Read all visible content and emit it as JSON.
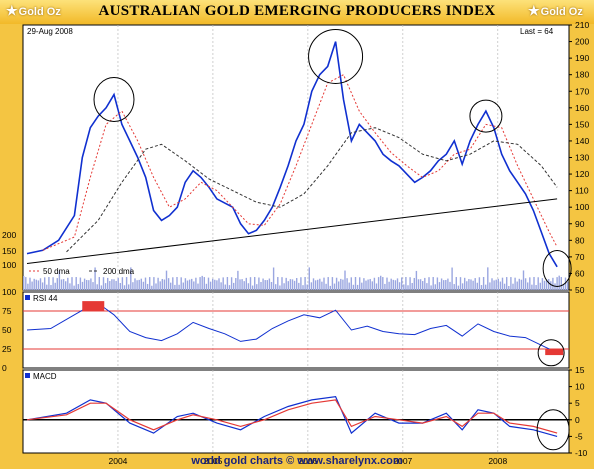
{
  "header": {
    "title": "AUSTRALIAN GOLD EMERGING PRODUCERS INDEX",
    "logo_left": "Gold Oz",
    "logo_right": "Gold Oz"
  },
  "footer": {
    "text": "world gold charts © www.sharelynx.com"
  },
  "chart_data": [
    {
      "type": "line",
      "panel": "price",
      "date_label": "29-Aug 2008",
      "last_label": "Last = 64",
      "ylim": [
        50,
        210
      ],
      "yticks": [
        50,
        60,
        70,
        80,
        90,
        100,
        110,
        120,
        130,
        140,
        150,
        160,
        170,
        180,
        190,
        200,
        210
      ],
      "volume_ticks": [
        "100",
        "150",
        "200"
      ],
      "x_labels": [
        "2004",
        "2005",
        "2006",
        "2007",
        "2008"
      ],
      "legend": [
        {
          "label": "50 dma",
          "color": "#e53935",
          "dash": "2,2"
        },
        {
          "label": "200 dma",
          "color": "#333333",
          "dash": "3,2"
        }
      ],
      "series": [
        {
          "name": "index",
          "color": "#1030d0",
          "points": [
            [
              "2003-01",
              72
            ],
            [
              "2003-03",
              74
            ],
            [
              "2003-05",
              80
            ],
            [
              "2003-07",
              95
            ],
            [
              "2003-08",
              130
            ],
            [
              "2003-09",
              148
            ],
            [
              "2003-10",
              155
            ],
            [
              "2003-11",
              160
            ],
            [
              "2003-12",
              168
            ],
            [
              "2004-01",
              150
            ],
            [
              "2004-02",
              140
            ],
            [
              "2004-03",
              130
            ],
            [
              "2004-04",
              118
            ],
            [
              "2004-05",
              98
            ],
            [
              "2004-06",
              92
            ],
            [
              "2004-07",
              95
            ],
            [
              "2004-08",
              100
            ],
            [
              "2004-09",
              115
            ],
            [
              "2004-10",
              122
            ],
            [
              "2004-11",
              118
            ],
            [
              "2004-12",
              112
            ],
            [
              "2005-01",
              105
            ],
            [
              "2005-03",
              100
            ],
            [
              "2005-04",
              90
            ],
            [
              "2005-05",
              84
            ],
            [
              "2005-06",
              86
            ],
            [
              "2005-07",
              92
            ],
            [
              "2005-08",
              100
            ],
            [
              "2005-09",
              112
            ],
            [
              "2005-10",
              125
            ],
            [
              "2005-11",
              140
            ],
            [
              "2005-12",
              150
            ],
            [
              "2006-01",
              170
            ],
            [
              "2006-02",
              180
            ],
            [
              "2006-03",
              185
            ],
            [
              "2006-04",
              200
            ],
            [
              "2006-05",
              165
            ],
            [
              "2006-06",
              140
            ],
            [
              "2006-07",
              150
            ],
            [
              "2006-08",
              145
            ],
            [
              "2006-09",
              140
            ],
            [
              "2006-10",
              132
            ],
            [
              "2006-11",
              128
            ],
            [
              "2006-12",
              125
            ],
            [
              "2007-01",
              120
            ],
            [
              "2007-02",
              115
            ],
            [
              "2007-03",
              118
            ],
            [
              "2007-04",
              122
            ],
            [
              "2007-05",
              128
            ],
            [
              "2007-06",
              132
            ],
            [
              "2007-07",
              140
            ],
            [
              "2007-08",
              126
            ],
            [
              "2007-09",
              140
            ],
            [
              "2007-10",
              150
            ],
            [
              "2007-11",
              158
            ],
            [
              "2007-12",
              148
            ],
            [
              "2008-01",
              132
            ],
            [
              "2008-02",
              122
            ],
            [
              "2008-03",
              115
            ],
            [
              "2008-04",
              108
            ],
            [
              "2008-05",
              98
            ],
            [
              "2008-06",
              85
            ],
            [
              "2008-07",
              72
            ],
            [
              "2008-08",
              64
            ]
          ]
        },
        {
          "name": "50 dma",
          "color": "#e53935",
          "points": [
            [
              "2003-03",
              74
            ],
            [
              "2003-07",
              82
            ],
            [
              "2003-09",
              118
            ],
            [
              "2003-11",
              150
            ],
            [
              "2004-01",
              158
            ],
            [
              "2004-03",
              140
            ],
            [
              "2004-05",
              118
            ],
            [
              "2004-07",
              100
            ],
            [
              "2004-09",
              105
            ],
            [
              "2004-11",
              115
            ],
            [
              "2005-01",
              110
            ],
            [
              "2005-03",
              100
            ],
            [
              "2005-05",
              90
            ],
            [
              "2005-07",
              89
            ],
            [
              "2005-09",
              102
            ],
            [
              "2005-11",
              125
            ],
            [
              "2006-01",
              150
            ],
            [
              "2006-03",
              175
            ],
            [
              "2006-05",
              180
            ],
            [
              "2006-07",
              158
            ],
            [
              "2006-09",
              145
            ],
            [
              "2006-11",
              133
            ],
            [
              "2007-01",
              125
            ],
            [
              "2007-03",
              118
            ],
            [
              "2007-05",
              122
            ],
            [
              "2007-07",
              132
            ],
            [
              "2007-09",
              135
            ],
            [
              "2007-11",
              150
            ],
            [
              "2008-01",
              148
            ],
            [
              "2008-03",
              125
            ],
            [
              "2008-05",
              105
            ],
            [
              "2008-07",
              85
            ],
            [
              "2008-08",
              76
            ]
          ]
        },
        {
          "name": "200 dma",
          "color": "#333333",
          "points": [
            [
              "2003-06",
              73
            ],
            [
              "2003-10",
              92
            ],
            [
              "2004-01",
              115
            ],
            [
              "2004-04",
              135
            ],
            [
              "2004-06",
              138
            ],
            [
              "2004-09",
              128
            ],
            [
              "2004-12",
              117
            ],
            [
              "2005-03",
              110
            ],
            [
              "2005-06",
              103
            ],
            [
              "2005-09",
              100
            ],
            [
              "2005-12",
              108
            ],
            [
              "2006-03",
              125
            ],
            [
              "2006-06",
              145
            ],
            [
              "2006-09",
              148
            ],
            [
              "2006-12",
              142
            ],
            [
              "2007-03",
              132
            ],
            [
              "2007-06",
              128
            ],
            [
              "2007-09",
              132
            ],
            [
              "2007-12",
              140
            ],
            [
              "2008-03",
              138
            ],
            [
              "2008-06",
              125
            ],
            [
              "2008-08",
              112
            ]
          ]
        },
        {
          "name": "trendline",
          "color": "#000000",
          "points": [
            [
              "2003-01",
              66
            ],
            [
              "2008-08",
              105
            ]
          ]
        }
      ],
      "annotations": [
        "circle 2003-12 peak",
        "circle 2006-05 peak",
        "circle 2007-11 peak",
        "circle 2008-08 low"
      ]
    },
    {
      "type": "line",
      "panel": "rsi",
      "label": "RSI 44",
      "ylim": [
        0,
        100
      ],
      "yticks": [
        0,
        25,
        50,
        75,
        100
      ],
      "reference_lines": [
        {
          "y": 75,
          "color": "#e53935"
        },
        {
          "y": 25,
          "color": "#e53935"
        }
      ],
      "series": [
        {
          "name": "RSI 44",
          "color": "#1030d0",
          "points": [
            [
              "2003-01",
              50
            ],
            [
              "2003-04",
              52
            ],
            [
              "2003-07",
              70
            ],
            [
              "2003-09",
              82
            ],
            [
              "2003-10",
              85
            ],
            [
              "2003-12",
              70
            ],
            [
              "2004-02",
              48
            ],
            [
              "2004-04",
              40
            ],
            [
              "2004-06",
              36
            ],
            [
              "2004-08",
              45
            ],
            [
              "2004-10",
              60
            ],
            [
              "2004-12",
              52
            ],
            [
              "2005-02",
              45
            ],
            [
              "2005-04",
              35
            ],
            [
              "2005-06",
              38
            ],
            [
              "2005-08",
              52
            ],
            [
              "2005-10",
              62
            ],
            [
              "2005-12",
              70
            ],
            [
              "2006-02",
              66
            ],
            [
              "2006-04",
              76
            ],
            [
              "2006-06",
              50
            ],
            [
              "2006-08",
              55
            ],
            [
              "2006-10",
              48
            ],
            [
              "2006-12",
              45
            ],
            [
              "2007-02",
              44
            ],
            [
              "2007-04",
              52
            ],
            [
              "2007-06",
              56
            ],
            [
              "2007-08",
              42
            ],
            [
              "2007-10",
              58
            ],
            [
              "2007-12",
              48
            ],
            [
              "2008-02",
              42
            ],
            [
              "2008-04",
              40
            ],
            [
              "2008-06",
              30
            ],
            [
              "2008-08",
              20
            ]
          ]
        }
      ]
    },
    {
      "type": "line",
      "panel": "macd",
      "label": "MACD",
      "ylim": [
        -10,
        15
      ],
      "yticks": [
        15,
        10,
        5,
        0,
        -5,
        -10
      ],
      "series": [
        {
          "name": "MACD",
          "color": "#1030d0",
          "points": [
            [
              "2003-01",
              0
            ],
            [
              "2003-06",
              2
            ],
            [
              "2003-09",
              6
            ],
            [
              "2003-11",
              5
            ],
            [
              "2004-02",
              -1
            ],
            [
              "2004-05",
              -4
            ],
            [
              "2004-08",
              1
            ],
            [
              "2004-10",
              2
            ],
            [
              "2005-01",
              -1
            ],
            [
              "2005-04",
              -3
            ],
            [
              "2005-07",
              1
            ],
            [
              "2005-10",
              4
            ],
            [
              "2006-01",
              6
            ],
            [
              "2006-04",
              7
            ],
            [
              "2006-06",
              -4
            ],
            [
              "2006-09",
              2
            ],
            [
              "2006-12",
              -1
            ],
            [
              "2007-03",
              -1
            ],
            [
              "2007-06",
              2
            ],
            [
              "2007-08",
              -3
            ],
            [
              "2007-10",
              3
            ],
            [
              "2007-12",
              2
            ],
            [
              "2008-02",
              -2
            ],
            [
              "2008-05",
              -3
            ],
            [
              "2008-08",
              -5
            ]
          ]
        },
        {
          "name": "signal",
          "color": "#e53935",
          "points": [
            [
              "2003-01",
              0
            ],
            [
              "2003-06",
              1.5
            ],
            [
              "2003-09",
              5
            ],
            [
              "2003-11",
              5
            ],
            [
              "2004-02",
              0
            ],
            [
              "2004-05",
              -3
            ],
            [
              "2004-08",
              0
            ],
            [
              "2004-10",
              1.5
            ],
            [
              "2005-01",
              0
            ],
            [
              "2005-04",
              -2
            ],
            [
              "2005-07",
              0
            ],
            [
              "2005-10",
              3
            ],
            [
              "2006-01",
              5
            ],
            [
              "2006-04",
              6
            ],
            [
              "2006-06",
              -2
            ],
            [
              "2006-09",
              1
            ],
            [
              "2006-12",
              0
            ],
            [
              "2007-03",
              -1
            ],
            [
              "2007-06",
              1
            ],
            [
              "2007-08",
              -2
            ],
            [
              "2007-10",
              2
            ],
            [
              "2007-12",
              2
            ],
            [
              "2008-02",
              -1
            ],
            [
              "2008-05",
              -2
            ],
            [
              "2008-08",
              -4
            ]
          ]
        }
      ]
    }
  ]
}
